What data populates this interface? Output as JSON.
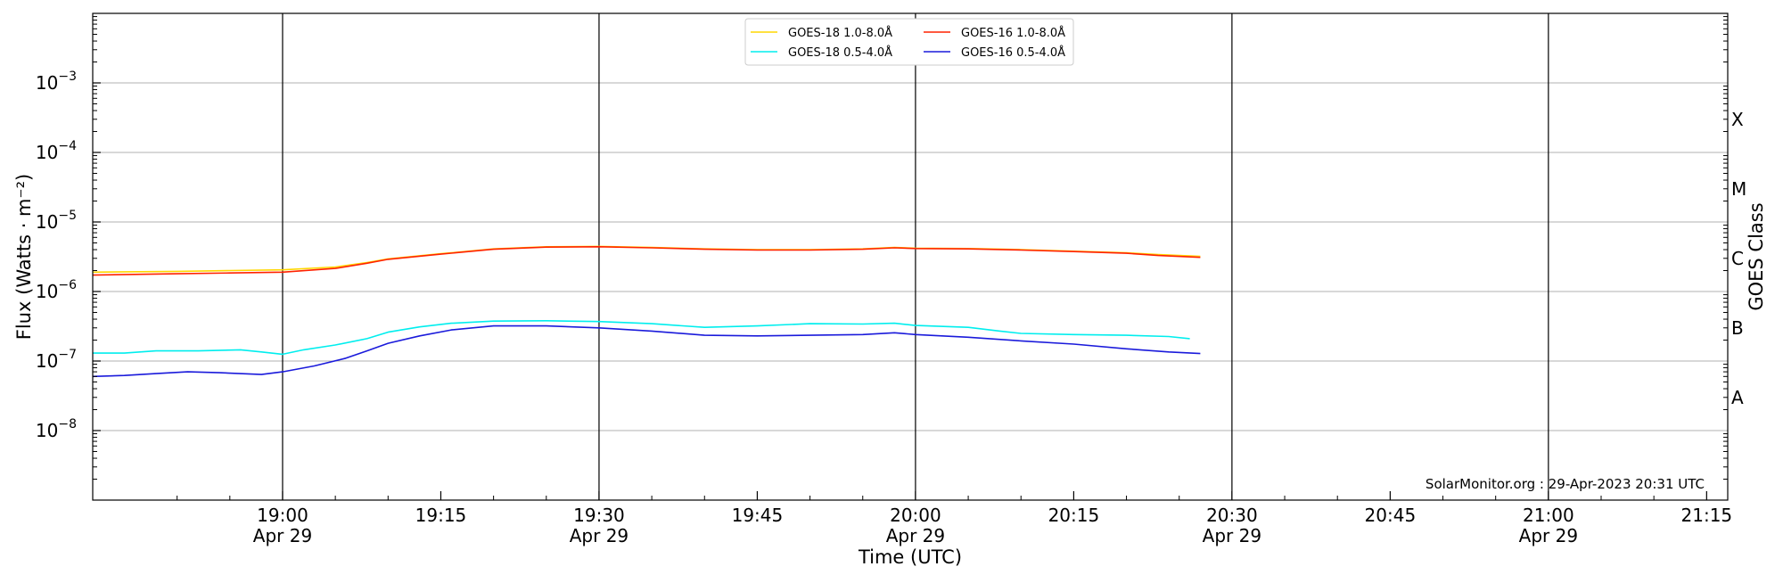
{
  "chart_data": {
    "type": "line",
    "title": "",
    "xlabel": "Time (UTC)",
    "ylabel": "Flux (Watts · m⁻²)",
    "y2label": "GOES Class",
    "yscale": "log",
    "ylim": [
      1e-09,
      0.01
    ],
    "xlim": [
      "2023-04-29 18:42",
      "2023-04-29 21:17"
    ],
    "grid": "horizontal at decades",
    "legend_position": "top-center",
    "y_ticks": [
      {
        "value": 1e-08,
        "base": "10",
        "exp": "−8"
      },
      {
        "value": 1e-07,
        "base": "10",
        "exp": "−7"
      },
      {
        "value": 1e-06,
        "base": "10",
        "exp": "−6"
      },
      {
        "value": 1e-05,
        "base": "10",
        "exp": "−5"
      },
      {
        "value": 0.0001,
        "base": "10",
        "exp": "−4"
      },
      {
        "value": 0.001,
        "base": "10",
        "exp": "−3"
      }
    ],
    "x_ticks": [
      {
        "time": "19:00",
        "label": "19:00",
        "date": "Apr 29",
        "vline": true
      },
      {
        "time": "19:15",
        "label": "19:15",
        "date": "",
        "vline": false
      },
      {
        "time": "19:30",
        "label": "19:30",
        "date": "Apr 29",
        "vline": true
      },
      {
        "time": "19:45",
        "label": "19:45",
        "date": "",
        "vline": false
      },
      {
        "time": "20:00",
        "label": "20:00",
        "date": "Apr 29",
        "vline": true
      },
      {
        "time": "20:15",
        "label": "20:15",
        "date": "",
        "vline": false
      },
      {
        "time": "20:30",
        "label": "20:30",
        "date": "Apr 29",
        "vline": true
      },
      {
        "time": "20:45",
        "label": "20:45",
        "date": "",
        "vline": false
      },
      {
        "time": "21:00",
        "label": "21:00",
        "date": "Apr 29",
        "vline": true
      },
      {
        "time": "21:15",
        "label": "21:15",
        "date": "",
        "vline": false
      }
    ],
    "goes_classes": [
      {
        "label": "X",
        "value": 0.0003
      },
      {
        "label": "M",
        "value": 3e-05
      },
      {
        "label": "C",
        "value": 3e-06
      },
      {
        "label": "B",
        "value": 3e-07
      },
      {
        "label": "A",
        "value": 3e-08
      }
    ],
    "series": [
      {
        "name": "GOES-18 1.0-8.0Å",
        "color": "#ffd700",
        "points": [
          [
            "18:42",
            1.9e-06
          ],
          [
            "18:50",
            1.95e-06
          ],
          [
            "18:55",
            2e-06
          ],
          [
            "19:00",
            2.05e-06
          ],
          [
            "19:05",
            2.25e-06
          ],
          [
            "19:08",
            2.6e-06
          ],
          [
            "19:10",
            2.95e-06
          ],
          [
            "19:15",
            3.5e-06
          ],
          [
            "19:20",
            4.1e-06
          ],
          [
            "19:25",
            4.4e-06
          ],
          [
            "19:30",
            4.45e-06
          ],
          [
            "19:35",
            4.3e-06
          ],
          [
            "19:40",
            4.1e-06
          ],
          [
            "19:45",
            4e-06
          ],
          [
            "19:50",
            4e-06
          ],
          [
            "19:55",
            4.1e-06
          ],
          [
            "19:58",
            4.3e-06
          ],
          [
            "20:00",
            4.2e-06
          ],
          [
            "20:05",
            4.15e-06
          ],
          [
            "20:10",
            4e-06
          ],
          [
            "20:15",
            3.8e-06
          ],
          [
            "20:20",
            3.6e-06
          ],
          [
            "20:23",
            3.4e-06
          ],
          [
            "20:27",
            3.2e-06
          ]
        ]
      },
      {
        "name": "GOES-18 0.5-4.0Å",
        "color": "#00eeee",
        "points": [
          [
            "18:42",
            1.3e-07
          ],
          [
            "18:45",
            1.3e-07
          ],
          [
            "18:48",
            1.4e-07
          ],
          [
            "18:52",
            1.4e-07
          ],
          [
            "18:56",
            1.45e-07
          ],
          [
            "18:58",
            1.35e-07
          ],
          [
            "19:00",
            1.25e-07
          ],
          [
            "19:02",
            1.45e-07
          ],
          [
            "19:05",
            1.7e-07
          ],
          [
            "19:08",
            2.1e-07
          ],
          [
            "19:10",
            2.6e-07
          ],
          [
            "19:13",
            3.1e-07
          ],
          [
            "19:16",
            3.5e-07
          ],
          [
            "19:20",
            3.75e-07
          ],
          [
            "19:25",
            3.8e-07
          ],
          [
            "19:30",
            3.7e-07
          ],
          [
            "19:35",
            3.45e-07
          ],
          [
            "19:40",
            3.05e-07
          ],
          [
            "19:45",
            3.2e-07
          ],
          [
            "19:50",
            3.45e-07
          ],
          [
            "19:55",
            3.4e-07
          ],
          [
            "19:58",
            3.5e-07
          ],
          [
            "20:00",
            3.25e-07
          ],
          [
            "20:05",
            3.05e-07
          ],
          [
            "20:08",
            2.7e-07
          ],
          [
            "20:10",
            2.5e-07
          ],
          [
            "20:15",
            2.4e-07
          ],
          [
            "20:20",
            2.35e-07
          ],
          [
            "20:24",
            2.25e-07
          ],
          [
            "20:26",
            2.1e-07
          ]
        ]
      },
      {
        "name": "GOES-16 1.0-8.0Å",
        "color": "#ff2200",
        "points": [
          [
            "18:42",
            1.72e-06
          ],
          [
            "18:50",
            1.8e-06
          ],
          [
            "18:55",
            1.85e-06
          ],
          [
            "19:00",
            1.9e-06
          ],
          [
            "19:05",
            2.15e-06
          ],
          [
            "19:08",
            2.55e-06
          ],
          [
            "19:10",
            2.9e-06
          ],
          [
            "19:15",
            3.45e-06
          ],
          [
            "19:20",
            4.05e-06
          ],
          [
            "19:25",
            4.35e-06
          ],
          [
            "19:30",
            4.4e-06
          ],
          [
            "19:35",
            4.25e-06
          ],
          [
            "19:40",
            4.05e-06
          ],
          [
            "19:45",
            3.95e-06
          ],
          [
            "19:50",
            3.95e-06
          ],
          [
            "19:55",
            4.05e-06
          ],
          [
            "19:58",
            4.25e-06
          ],
          [
            "20:00",
            4.15e-06
          ],
          [
            "20:05",
            4.1e-06
          ],
          [
            "20:10",
            3.95e-06
          ],
          [
            "20:15",
            3.75e-06
          ],
          [
            "20:20",
            3.55e-06
          ],
          [
            "20:23",
            3.3e-06
          ],
          [
            "20:27",
            3.1e-06
          ]
        ]
      },
      {
        "name": "GOES-16 0.5-4.0Å",
        "color": "#1a1adb",
        "points": [
          [
            "18:42",
            6e-08
          ],
          [
            "18:45",
            6.2e-08
          ],
          [
            "18:48",
            6.6e-08
          ],
          [
            "18:51",
            7e-08
          ],
          [
            "18:54",
            6.8e-08
          ],
          [
            "18:58",
            6.4e-08
          ],
          [
            "19:00",
            7e-08
          ],
          [
            "19:03",
            8.5e-08
          ],
          [
            "19:06",
            1.1e-07
          ],
          [
            "19:08",
            1.4e-07
          ],
          [
            "19:10",
            1.8e-07
          ],
          [
            "19:13",
            2.3e-07
          ],
          [
            "19:16",
            2.8e-07
          ],
          [
            "19:20",
            3.2e-07
          ],
          [
            "19:25",
            3.2e-07
          ],
          [
            "19:30",
            3e-07
          ],
          [
            "19:35",
            2.7e-07
          ],
          [
            "19:40",
            2.35e-07
          ],
          [
            "19:45",
            2.3e-07
          ],
          [
            "19:50",
            2.35e-07
          ],
          [
            "19:55",
            2.4e-07
          ],
          [
            "19:58",
            2.55e-07
          ],
          [
            "20:00",
            2.4e-07
          ],
          [
            "20:05",
            2.2e-07
          ],
          [
            "20:10",
            1.95e-07
          ],
          [
            "20:15",
            1.75e-07
          ],
          [
            "20:20",
            1.5e-07
          ],
          [
            "20:24",
            1.35e-07
          ],
          [
            "20:27",
            1.28e-07
          ]
        ]
      }
    ],
    "legend_order": [
      0,
      2,
      1,
      3
    ],
    "footer": "SolarMonitor.org : 29-Apr-2023 20:31 UTC"
  }
}
